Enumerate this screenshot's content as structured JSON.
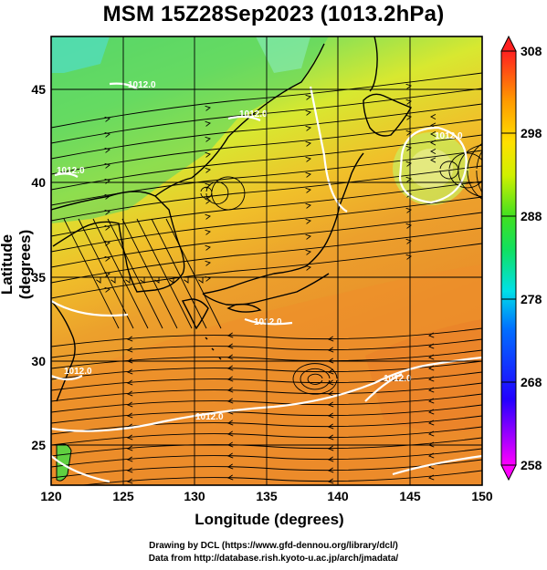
{
  "title": "MSM 15Z28Sep2023 (1013.2hPa)",
  "axes": {
    "xlabel": "Longitude (degrees)",
    "ylabel": "Latitude  (degrees)",
    "xticks": [
      "120",
      "125",
      "130",
      "135",
      "140",
      "145",
      "150"
    ],
    "yticks": [
      "25",
      "30",
      "35",
      "40",
      "45"
    ],
    "xrange": [
      120,
      150
    ],
    "yrange": [
      22.5,
      47.5
    ]
  },
  "colorbar": {
    "ticks": [
      "258",
      "268",
      "278",
      "288",
      "298",
      "308"
    ],
    "range": [
      258,
      308
    ],
    "colors": [
      "#ff00ff",
      "#0000ff",
      "#00ffff",
      "#00ff00",
      "#ffff00",
      "#ff8000",
      "#ff0000"
    ]
  },
  "contour_labels": [
    "1012.0",
    "1012.0",
    "1012.0",
    "1012.0",
    "1012.0",
    "1012.0",
    "1012.0",
    "1012.0"
  ],
  "credits": {
    "line1": "Drawing by DCL (https://www.gfd-dennou.org/library/dcl/)",
    "line2": "Data from http://database.rish.kyoto-u.ac.jp/arch/jmadata/"
  }
}
